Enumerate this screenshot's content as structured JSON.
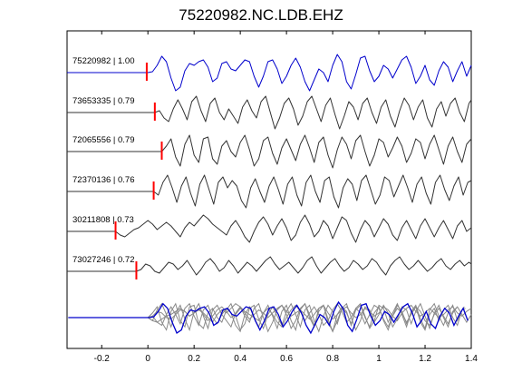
{
  "chart_data": {
    "type": "line",
    "title": "75220982.NC.LDB.EHZ",
    "xlabel": "",
    "ylabel": "",
    "xlim": [
      -0.35,
      1.4
    ],
    "xticks": [
      "-0.2",
      "0",
      "0.2",
      "0.4",
      "0.6",
      "0.8",
      "1",
      "1.2",
      "1.4"
    ],
    "xtick_values": [
      -0.2,
      0,
      0.2,
      0.4,
      0.6,
      0.8,
      1.0,
      1.2,
      1.4
    ],
    "grid": false,
    "colors": {
      "reference": "#0000cc",
      "trace": "#333333",
      "pick": "#ff0000",
      "stack_gray": "#8a8a8a",
      "axes": "#000000"
    },
    "series": [
      {
        "name": "75220982 | 1.00",
        "pick_time": -0.005,
        "x": [
          -0.35,
          0.0,
          0.02,
          0.04,
          0.06,
          0.08,
          0.1,
          0.12,
          0.14,
          0.16,
          0.18,
          0.2,
          0.22,
          0.24,
          0.26,
          0.28,
          0.3,
          0.32,
          0.34,
          0.36,
          0.38,
          0.4,
          0.42,
          0.44,
          0.46,
          0.48,
          0.5,
          0.52,
          0.54,
          0.56,
          0.58,
          0.6,
          0.62,
          0.64,
          0.66,
          0.68,
          0.7,
          0.72,
          0.74,
          0.76,
          0.78,
          0.8,
          0.82,
          0.84,
          0.86,
          0.88,
          0.9,
          0.92,
          0.94,
          0.96,
          0.98,
          1.0,
          1.02,
          1.04,
          1.06,
          1.08,
          1.1,
          1.12,
          1.14,
          1.16,
          1.18,
          1.2,
          1.22,
          1.24,
          1.26,
          1.28,
          1.3,
          1.32,
          1.34,
          1.36,
          1.38,
          1.4
        ],
        "y": [
          0.0,
          0.0,
          0.05,
          0.4,
          0.9,
          0.6,
          -0.3,
          -1.0,
          -0.8,
          0.1,
          0.5,
          0.4,
          0.6,
          0.7,
          0.3,
          -0.5,
          -0.3,
          0.5,
          0.6,
          0.2,
          0.1,
          0.4,
          0.7,
          0.6,
          -0.2,
          -0.8,
          -0.2,
          0.6,
          0.7,
          0.2,
          -0.6,
          -0.2,
          0.4,
          0.8,
          0.3,
          -0.5,
          -1.0,
          -0.4,
          0.2,
          0.0,
          -0.5,
          0.4,
          1.0,
          0.6,
          -0.5,
          -0.9,
          -0.1,
          0.8,
          0.9,
          0.1,
          -0.5,
          -0.2,
          0.4,
          0.2,
          -0.3,
          0.2,
          0.7,
          0.9,
          0.3,
          -0.6,
          -0.2,
          0.4,
          -0.4,
          -0.7,
          0.1,
          0.6,
          0.3,
          -0.5,
          0.1,
          0.6,
          -0.2,
          0.4
        ]
      },
      {
        "name": "73653335 | 0.79",
        "pick_time": 0.03,
        "x": [
          -0.35,
          0.03,
          0.05,
          0.07,
          0.09,
          0.11,
          0.13,
          0.15,
          0.17,
          0.19,
          0.21,
          0.23,
          0.25,
          0.27,
          0.29,
          0.31,
          0.33,
          0.35,
          0.37,
          0.39,
          0.41,
          0.43,
          0.45,
          0.47,
          0.49,
          0.51,
          0.53,
          0.55,
          0.57,
          0.59,
          0.61,
          0.63,
          0.65,
          0.67,
          0.69,
          0.71,
          0.73,
          0.75,
          0.77,
          0.79,
          0.81,
          0.83,
          0.85,
          0.87,
          0.89,
          0.91,
          0.93,
          0.95,
          0.97,
          0.99,
          1.01,
          1.03,
          1.05,
          1.07,
          1.09,
          1.11,
          1.13,
          1.15,
          1.17,
          1.19,
          1.21,
          1.23,
          1.25,
          1.27,
          1.29,
          1.31,
          1.33,
          1.35,
          1.37,
          1.39,
          1.4
        ],
        "y": [
          0.0,
          0.0,
          0.1,
          -0.3,
          -0.5,
          0.2,
          0.7,
          0.2,
          -0.4,
          0.6,
          0.9,
          0.1,
          -0.5,
          0.5,
          0.8,
          0.0,
          -0.4,
          0.2,
          -0.2,
          -0.6,
          0.3,
          0.7,
          0.1,
          -0.3,
          0.6,
          0.9,
          0.0,
          -0.9,
          -0.3,
          0.5,
          0.8,
          0.2,
          -0.7,
          -0.2,
          0.6,
          0.9,
          0.2,
          -0.5,
          0.4,
          0.8,
          -0.1,
          -0.9,
          -0.2,
          0.6,
          0.3,
          -0.4,
          0.5,
          0.8,
          0.0,
          -0.6,
          0.3,
          0.7,
          -0.2,
          -0.8,
          0.1,
          0.8,
          0.4,
          -0.4,
          0.3,
          0.7,
          -0.3,
          -0.8,
          0.2,
          0.6,
          -0.2,
          0.5,
          0.8,
          0.0,
          -0.5,
          0.5,
          0.7
        ]
      },
      {
        "name": "72065556 | 0.79",
        "pick_time": 0.06,
        "x": [
          -0.35,
          0.06,
          0.08,
          0.1,
          0.12,
          0.14,
          0.16,
          0.18,
          0.2,
          0.22,
          0.24,
          0.26,
          0.28,
          0.3,
          0.32,
          0.34,
          0.36,
          0.38,
          0.4,
          0.42,
          0.44,
          0.46,
          0.48,
          0.5,
          0.52,
          0.54,
          0.56,
          0.58,
          0.6,
          0.62,
          0.64,
          0.66,
          0.68,
          0.7,
          0.72,
          0.74,
          0.76,
          0.78,
          0.8,
          0.82,
          0.84,
          0.86,
          0.88,
          0.9,
          0.92,
          0.94,
          0.96,
          0.98,
          1.0,
          1.02,
          1.04,
          1.06,
          1.08,
          1.1,
          1.12,
          1.14,
          1.16,
          1.18,
          1.2,
          1.22,
          1.24,
          1.26,
          1.28,
          1.3,
          1.32,
          1.34,
          1.36,
          1.38,
          1.4
        ],
        "y": [
          0.0,
          0.0,
          0.3,
          0.7,
          -0.3,
          -0.8,
          0.4,
          0.9,
          -0.2,
          -0.6,
          0.7,
          0.8,
          -0.4,
          -0.7,
          0.3,
          0.6,
          0.0,
          -0.3,
          0.5,
          0.9,
          0.1,
          -0.8,
          -0.4,
          0.6,
          0.8,
          -0.1,
          -0.7,
          0.2,
          0.7,
          0.1,
          -0.5,
          0.4,
          0.9,
          0.2,
          -0.6,
          0.5,
          0.8,
          -0.2,
          -0.9,
          0.1,
          0.8,
          0.4,
          -0.4,
          0.6,
          0.9,
          0.0,
          -0.8,
          -0.2,
          0.7,
          0.5,
          -0.3,
          0.2,
          0.8,
          0.3,
          -0.6,
          -0.1,
          0.7,
          0.5,
          -0.4,
          0.4,
          0.9,
          0.1,
          -0.7,
          0.3,
          0.8,
          0.0,
          -0.6,
          0.4,
          0.7
        ]
      },
      {
        "name": "72370136 | 0.76",
        "pick_time": 0.025,
        "x": [
          -0.35,
          0.025,
          0.045,
          0.065,
          0.085,
          0.105,
          0.125,
          0.145,
          0.165,
          0.185,
          0.205,
          0.225,
          0.245,
          0.265,
          0.285,
          0.305,
          0.325,
          0.345,
          0.365,
          0.385,
          0.405,
          0.425,
          0.445,
          0.465,
          0.485,
          0.505,
          0.525,
          0.545,
          0.565,
          0.585,
          0.605,
          0.625,
          0.645,
          0.665,
          0.685,
          0.705,
          0.725,
          0.745,
          0.765,
          0.785,
          0.805,
          0.825,
          0.845,
          0.865,
          0.885,
          0.905,
          0.925,
          0.945,
          0.965,
          0.985,
          1.005,
          1.025,
          1.045,
          1.065,
          1.085,
          1.105,
          1.125,
          1.145,
          1.165,
          1.185,
          1.205,
          1.225,
          1.245,
          1.265,
          1.285,
          1.305,
          1.325,
          1.345,
          1.365,
          1.385,
          1.4
        ],
        "y": [
          0.0,
          0.0,
          -0.2,
          0.5,
          0.9,
          0.2,
          -0.6,
          0.3,
          0.8,
          -0.1,
          -0.8,
          0.4,
          0.9,
          0.1,
          -0.7,
          0.5,
          0.8,
          0.2,
          0.6,
          0.3,
          -0.5,
          -0.9,
          0.2,
          0.7,
          0.0,
          -0.6,
          0.3,
          0.8,
          0.1,
          -0.7,
          0.4,
          0.8,
          -0.2,
          -0.8,
          0.5,
          0.9,
          0.0,
          -0.6,
          0.6,
          0.8,
          -0.3,
          -0.9,
          0.2,
          0.7,
          0.4,
          -0.5,
          0.6,
          0.9,
          0.1,
          -0.7,
          -0.2,
          0.8,
          0.6,
          -0.3,
          0.3,
          0.9,
          0.2,
          -0.6,
          0.4,
          0.8,
          -0.1,
          -0.7,
          0.5,
          0.9,
          0.1,
          -0.5,
          0.3,
          0.8,
          -0.2,
          0.5,
          0.6
        ]
      },
      {
        "name": "30211808 | 0.73",
        "pick_time": -0.14,
        "x": [
          -0.35,
          -0.14,
          -0.12,
          -0.1,
          -0.08,
          -0.06,
          -0.04,
          -0.02,
          0.0,
          0.02,
          0.04,
          0.06,
          0.08,
          0.1,
          0.12,
          0.14,
          0.16,
          0.18,
          0.2,
          0.22,
          0.24,
          0.26,
          0.28,
          0.3,
          0.32,
          0.34,
          0.36,
          0.38,
          0.4,
          0.42,
          0.44,
          0.46,
          0.48,
          0.5,
          0.52,
          0.54,
          0.56,
          0.58,
          0.6,
          0.62,
          0.64,
          0.66,
          0.68,
          0.7,
          0.72,
          0.74,
          0.76,
          0.78,
          0.8,
          0.82,
          0.84,
          0.86,
          0.88,
          0.9,
          0.92,
          0.94,
          0.96,
          0.98,
          1.0,
          1.02,
          1.04,
          1.06,
          1.08,
          1.1,
          1.12,
          1.14,
          1.16,
          1.18,
          1.2,
          1.22,
          1.24,
          1.26,
          1.28,
          1.3,
          1.32,
          1.34,
          1.36,
          1.38,
          1.4
        ],
        "y": [
          0.0,
          0.0,
          -0.2,
          -0.3,
          -0.1,
          0.1,
          0.2,
          0.4,
          0.6,
          0.4,
          0.1,
          0.3,
          0.5,
          0.3,
          0.0,
          -0.3,
          0.2,
          0.5,
          0.3,
          0.6,
          0.9,
          0.7,
          0.4,
          0.2,
          0.0,
          -0.2,
          0.3,
          0.6,
          0.2,
          -0.3,
          -0.6,
          0.0,
          0.5,
          0.8,
          0.4,
          -0.2,
          0.3,
          0.7,
          0.2,
          -0.5,
          -0.2,
          0.5,
          0.9,
          0.4,
          -0.3,
          0.0,
          0.6,
          0.3,
          -0.4,
          0.2,
          0.8,
          0.6,
          -0.1,
          -0.6,
          0.1,
          0.6,
          0.3,
          -0.3,
          0.2,
          0.7,
          0.4,
          -0.2,
          -0.5,
          0.2,
          0.6,
          0.1,
          -0.4,
          0.3,
          0.7,
          0.2,
          -0.3,
          0.2,
          0.6,
          0.1,
          -0.4,
          0.3,
          0.6,
          0.0,
          0.2
        ]
      },
      {
        "name": "73027246 | 0.72",
        "pick_time": -0.05,
        "x": [
          -0.35,
          -0.05,
          -0.03,
          -0.01,
          0.01,
          0.03,
          0.05,
          0.07,
          0.09,
          0.11,
          0.13,
          0.15,
          0.17,
          0.19,
          0.21,
          0.23,
          0.25,
          0.27,
          0.29,
          0.31,
          0.33,
          0.35,
          0.37,
          0.39,
          0.41,
          0.43,
          0.45,
          0.47,
          0.49,
          0.51,
          0.53,
          0.55,
          0.57,
          0.59,
          0.61,
          0.63,
          0.65,
          0.67,
          0.69,
          0.71,
          0.73,
          0.75,
          0.77,
          0.79,
          0.81,
          0.83,
          0.85,
          0.87,
          0.89,
          0.91,
          0.93,
          0.95,
          0.97,
          0.99,
          1.01,
          1.03,
          1.05,
          1.07,
          1.09,
          1.11,
          1.13,
          1.15,
          1.17,
          1.19,
          1.21,
          1.23,
          1.25,
          1.27,
          1.29,
          1.31,
          1.33,
          1.35,
          1.37,
          1.39,
          1.4
        ],
        "y": [
          0.0,
          0.0,
          0.1,
          0.4,
          0.3,
          0.0,
          -0.1,
          0.2,
          0.5,
          0.4,
          0.1,
          0.3,
          0.6,
          0.2,
          -0.2,
          0.1,
          0.5,
          0.7,
          0.4,
          0.0,
          0.2,
          0.6,
          0.3,
          -0.1,
          0.2,
          0.5,
          0.3,
          0.0,
          0.3,
          0.6,
          0.8,
          0.4,
          0.1,
          0.3,
          0.5,
          0.2,
          -0.1,
          0.2,
          0.6,
          0.8,
          0.3,
          -0.1,
          0.2,
          0.5,
          0.7,
          0.3,
          0.0,
          0.2,
          0.6,
          0.4,
          0.1,
          0.3,
          0.7,
          0.5,
          0.1,
          -0.2,
          0.3,
          0.6,
          0.8,
          0.4,
          0.1,
          0.3,
          0.6,
          0.3,
          0.0,
          0.2,
          0.5,
          0.7,
          0.3,
          0.1,
          0.4,
          0.6,
          0.3,
          0.5,
          0.4
        ]
      }
    ]
  }
}
